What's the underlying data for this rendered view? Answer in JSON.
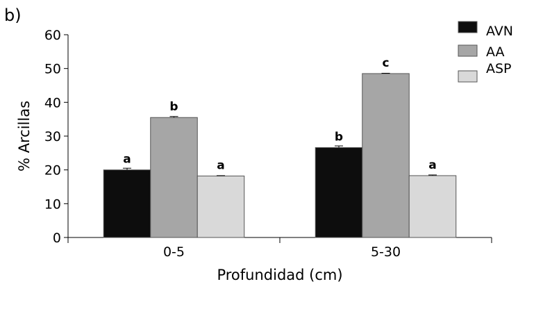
{
  "chart_data": {
    "type": "bar",
    "panel_label": "b)",
    "title": "",
    "xlabel": "Profundidad (cm)",
    "ylabel": "% Arcillas",
    "ylim": [
      0,
      60
    ],
    "yticks": [
      0,
      10,
      20,
      30,
      40,
      50,
      60
    ],
    "categories": [
      "0-5",
      "5-30"
    ],
    "grid": false,
    "legend_placement": "top-right",
    "series": [
      {
        "name": "AVN",
        "color": "#0d0d0d",
        "values": [
          20.0,
          26.6
        ],
        "errors": [
          0.5,
          0.5
        ],
        "letters": [
          "a",
          "b"
        ]
      },
      {
        "name": "AA",
        "color": "#a6a6a6",
        "values": [
          35.5,
          48.5
        ],
        "errors": [
          0.3,
          0.1
        ],
        "letters": [
          "b",
          "c"
        ]
      },
      {
        "name": "ASP",
        "color": "#d9d9d9",
        "values": [
          18.2,
          18.3
        ],
        "errors": [
          0.1,
          0.2
        ],
        "letters": [
          "a",
          "a"
        ]
      }
    ]
  }
}
